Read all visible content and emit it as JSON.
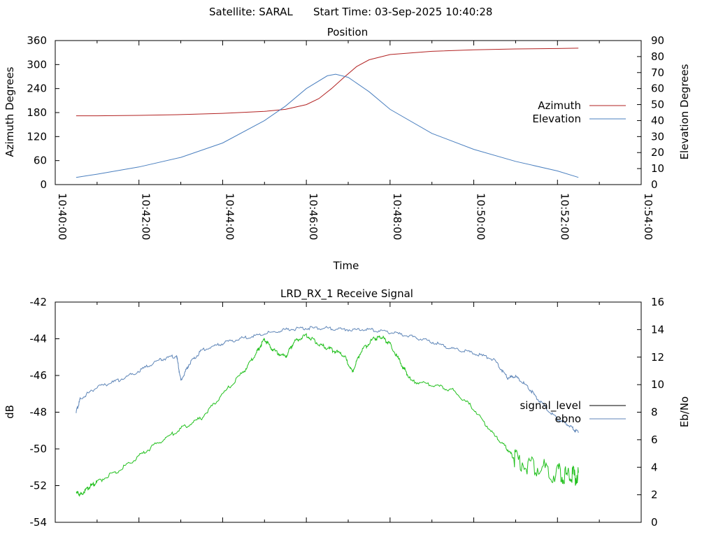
{
  "header": {
    "satellite": "Satellite: SARAL",
    "start_time": "Start Time: 03-Sep-2025 10:40:28"
  },
  "colors": {
    "azimuth": "#b22222",
    "elevation": "#4a7fbf",
    "signal_level": "#000000",
    "ebno_line": "#5f86b8",
    "green_trace": "#22c01e",
    "axis": "#000000"
  },
  "chart_data": [
    {
      "type": "line",
      "title": "Position",
      "xlabel": "Time",
      "ylabel": "Azimuth Degrees",
      "y2label": "Elevation Degrees",
      "xlim_minutes": [
        0,
        14
      ],
      "ylim": [
        0,
        360
      ],
      "y2lim": [
        0,
        90
      ],
      "y_ticks": [
        "0",
        "60",
        "120",
        "180",
        "240",
        "300",
        "360"
      ],
      "y2_ticks": [
        "0",
        "10",
        "20",
        "30",
        "40",
        "50",
        "60",
        "70",
        "80",
        "90"
      ],
      "x_ticks": [
        "10:40:00",
        "10:42:00",
        "10:44:00",
        "10:46:00",
        "10:48:00",
        "10:50:00",
        "10:52:00",
        "10:54:00"
      ],
      "legend": "right",
      "series": [
        {
          "name": "Azimuth",
          "axis": "left",
          "color": "#b22222",
          "x": [
            0.5,
            1,
            2,
            3,
            4,
            5,
            5.5,
            6,
            6.3,
            6.6,
            6.9,
            7.2,
            7.5,
            8,
            9,
            10,
            11,
            12,
            12.5
          ],
          "y": [
            172,
            172,
            173,
            175,
            178,
            183,
            188,
            200,
            215,
            240,
            268,
            295,
            312,
            325,
            333,
            337,
            339,
            340,
            341
          ]
        },
        {
          "name": "Elevation",
          "axis": "right",
          "color": "#4a7fbf",
          "x": [
            0.5,
            1,
            2,
            3,
            4,
            5,
            5.5,
            6,
            6.5,
            6.7,
            7,
            7.5,
            8,
            9,
            10,
            11,
            12,
            12.5
          ],
          "y": [
            4.5,
            6.5,
            11,
            17,
            26,
            40,
            49,
            60,
            68,
            69,
            67,
            58,
            47,
            32,
            22,
            14.5,
            8.5,
            4.5
          ]
        }
      ]
    },
    {
      "type": "line",
      "title": "LRD_RX_1 Receive Signal",
      "xlabel": "",
      "ylabel": "dB",
      "y2label": "Eb/No",
      "xlim_minutes": [
        0,
        14
      ],
      "ylim": [
        -54,
        -42
      ],
      "y2lim": [
        0,
        16
      ],
      "y_ticks": [
        "-54",
        "-52",
        "-50",
        "-48",
        "-46",
        "-44",
        "-42"
      ],
      "y2_ticks": [
        "0",
        "2",
        "4",
        "6",
        "8",
        "10",
        "12",
        "14",
        "16"
      ],
      "legend": "right",
      "series": [
        {
          "name": "signal_level",
          "axis": "left",
          "color": "#000000",
          "x": [],
          "y": []
        },
        {
          "name": "ebno",
          "axis": "right",
          "color": "#5f86b8",
          "x": [
            0.5,
            0.6,
            1.0,
            1.5,
            2.0,
            2.5,
            2.9,
            3.0,
            3.2,
            3.5,
            4.0,
            4.5,
            5.0,
            5.5,
            6.0,
            6.5,
            7.0,
            7.5,
            8.0,
            8.5,
            9.0,
            9.5,
            10.0,
            10.5,
            10.8,
            11.0,
            11.3,
            11.6,
            12.0,
            12.3,
            12.5
          ],
          "y": [
            8,
            9,
            9.8,
            10.3,
            11,
            11.8,
            12.1,
            10.3,
            11.5,
            12.5,
            13,
            13.4,
            13.7,
            14,
            14.1,
            14.1,
            14,
            14,
            13.8,
            13.5,
            13.1,
            12.6,
            12.3,
            11.8,
            10.5,
            10.6,
            9.8,
            8.7,
            7.5,
            7,
            6.5
          ]
        },
        {
          "name": "",
          "axis": "left",
          "color": "#22c01e",
          "x": [
            0.5,
            0.6,
            0.8,
            1.0,
            1.5,
            2.0,
            2.5,
            3.0,
            3.5,
            4.0,
            4.5,
            4.8,
            5.0,
            5.2,
            5.5,
            5.7,
            6.0,
            6.3,
            6.6,
            6.9,
            7.1,
            7.3,
            7.6,
            7.8,
            8.0,
            8.3,
            8.5,
            9.0,
            9.5,
            10.0,
            10.5,
            10.8,
            11.0,
            11.5,
            12.0,
            12.3,
            12.5
          ],
          "y": [
            -52.3,
            -52.5,
            -52.1,
            -51.8,
            -51.2,
            -50.4,
            -49.6,
            -48.9,
            -48.3,
            -47.0,
            -45.8,
            -44.8,
            -44.0,
            -44.6,
            -45.0,
            -44.2,
            -43.8,
            -44.3,
            -44.6,
            -44.9,
            -45.8,
            -44.7,
            -44.0,
            -43.9,
            -44.3,
            -45.5,
            -46.3,
            -46.5,
            -46.8,
            -47.8,
            -49.3,
            -50.0,
            -50.6,
            -51.0,
            -51.3,
            -51.6,
            -51.3
          ]
        }
      ]
    }
  ]
}
